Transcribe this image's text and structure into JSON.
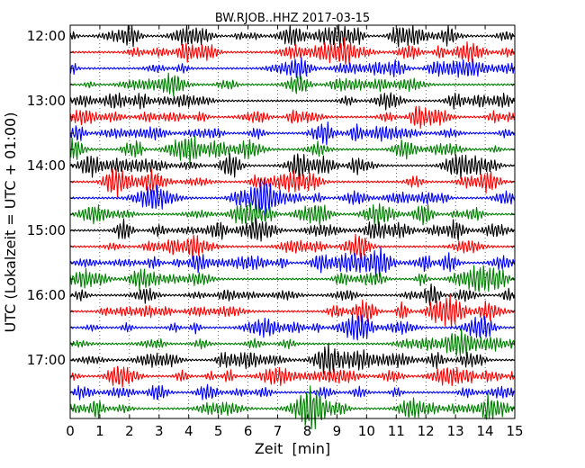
{
  "chart_data": {
    "type": "line",
    "title": "BW.RJOB..HHZ 2017-03-15",
    "xlabel": "Zeit  [min]",
    "ylabel": "UTC (Lokalzeit = UTC + 01:00)",
    "xlim": [
      0,
      15
    ],
    "x_ticks": [
      "0",
      "1",
      "2",
      "3",
      "4",
      "5",
      "6",
      "7",
      "8",
      "9",
      "10",
      "11",
      "12",
      "13",
      "14",
      "15"
    ],
    "y_tick_labels": [
      "12:00",
      "13:00",
      "14:00",
      "15:00",
      "16:00",
      "17:00"
    ],
    "trace_count": 24,
    "trace_interval_min": 15,
    "trace_colors": [
      "#000000",
      "#ff0000",
      "#0000ff",
      "#008000"
    ],
    "grid": "vertical dotted",
    "legend": "none"
  }
}
